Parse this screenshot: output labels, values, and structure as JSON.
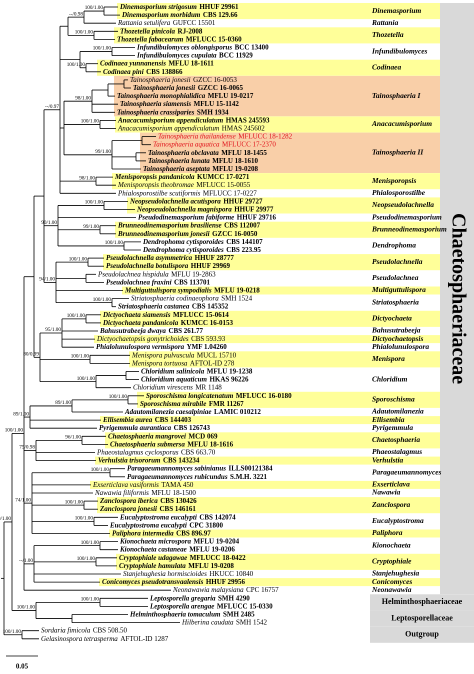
{
  "taxa": [
    {
      "name": "Dinemasporium strigosum",
      "strain": "HHUF 29961"
    },
    {
      "name": "Dinemasporium morbidum",
      "strain": "CBS 129.66"
    },
    {
      "name": "Rattania setulifera",
      "strain": "GUFCC 15501",
      "bold": false
    },
    {
      "name": "Thozetella pinicola",
      "strain": "RJ-2008"
    },
    {
      "name": "Thozetella fabacearum",
      "strain": "MFLUCC 15-0360"
    },
    {
      "name": "Infundibulomyces oblongisporus",
      "strain": "BCC 13400"
    },
    {
      "name": "Infundibulomyces cupulata",
      "strain": "BCC 11929"
    },
    {
      "name": "Codinaea yunnanensis",
      "strain": "MFLU 18-1611"
    },
    {
      "name": "Codinaea pini",
      "strain": "CBS 138866"
    },
    {
      "name": "Tainosphaeria jonesii",
      "strain": "GZCC 16-0053",
      "bold": false
    },
    {
      "name": "Tainosphaeria jonesii",
      "strain": "GZCC 16-0065"
    },
    {
      "name": "Tainosphaeria monophialidica",
      "strain": "MFLU 19-0217"
    },
    {
      "name": "Tainosphaeria siamensis",
      "strain": "MFLU 15-1142"
    },
    {
      "name": "Tainosphaeria crassiparies",
      "strain": "SMH 1934"
    },
    {
      "name": "Anacacumisporium appendiculatum",
      "strain": "HMAS 245593"
    },
    {
      "name": "Anacacumisporium appendiculatum",
      "strain": "HMAS 245602",
      "bold": false
    },
    {
      "name": "Tainosphaeria thailandense",
      "strain": "MFLUCC 18-1282",
      "color": "#e0101a",
      "bold": false
    },
    {
      "name": "Tainosphaeria aquatica",
      "strain": "MFLUCC 17-2370",
      "color": "#e0101a",
      "bold": false
    },
    {
      "name": "Tainosphaeria obclavata",
      "strain": "MFLU 18-1455"
    },
    {
      "name": "Tainosphaeria lunata",
      "strain": "MFLU 18-1610"
    },
    {
      "name": "Tainosphaeria aseptata",
      "strain": "MFLU 19-0208"
    },
    {
      "name": "Menisporopsis pandanicola",
      "strain": "KUMCC 17-0271"
    },
    {
      "name": "Menisporopsis theobromae",
      "strain": "MFLUCC 15-0055",
      "bold": false
    },
    {
      "name": "Phialosporostilbe scutiformis",
      "strain": "MFLUCC 17-0227",
      "bold": false
    },
    {
      "name": "Neopseudolachnella acutispora",
      "strain": "HHUF 29727"
    },
    {
      "name": "Neopseudolachnella magnispora",
      "strain": "HHUF 29977"
    },
    {
      "name": "Pseudodinemasporium fabiforme",
      "strain": "HHUF 29716"
    },
    {
      "name": "Brunneodinemasporium brasiliense",
      "strain": "CBS 112007"
    },
    {
      "name": "Brunneodinemasporium jonesii",
      "strain": "GZCC 16-0050"
    },
    {
      "name": "Dendrophoma cytisporoides",
      "strain": "CBS 144107"
    },
    {
      "name": "Dendrophoma cytisporoides",
      "strain": "CBS 223.95"
    },
    {
      "name": "Pseudolachnella asymmetrica",
      "strain": "HHUF 28777"
    },
    {
      "name": "Pseudolachnella botulispora",
      "strain": "HHUF 29969"
    },
    {
      "name": "Pseudolachnea hispidula",
      "strain": "MFLU 19-2863",
      "bold": false
    },
    {
      "name": "Pseudolachnea fraxini",
      "strain": "CBS 113701"
    },
    {
      "name": "Multiguttulispora sympodialis",
      "strain": "MFLU 19-0218"
    },
    {
      "name": "Striatosphaeria codinaeophora",
      "strain": "SMH 1524",
      "bold": false
    },
    {
      "name": "Striatosphaeria castanea",
      "strain": "CBS 145352"
    },
    {
      "name": "Dictyochaeta siamensis",
      "strain": "MFLUCC 15-0614"
    },
    {
      "name": "Dictyochaeta pandanicola",
      "strain": "KUMCC 16-0153"
    },
    {
      "name": "Bahusutrabeeja dwaya",
      "strain": "CBS 261.77"
    },
    {
      "name": "Dictyochaetopsis gonytrichoides",
      "strain": "CBS 593.93",
      "bold": false
    },
    {
      "name": "Phialolunulospora vermispora",
      "strain": "YMF 1.04260"
    },
    {
      "name": "Menispora pulvuscula",
      "strain": "MUCL 15710",
      "bold": false
    },
    {
      "name": "Menispora tortuosa",
      "strain": "AFTOL-ID 278",
      "bold": false
    },
    {
      "name": "Chloridium salinicola",
      "strain": "MFLU 19-1238"
    },
    {
      "name": "Chloridium aquaticum",
      "strain": "HKAS 96226"
    },
    {
      "name": "Chloridium virescens",
      "strain": "MR 1148",
      "bold": false
    },
    {
      "name": "Sporoschisma longicatenatum",
      "strain": "MFLUCC 16-0180"
    },
    {
      "name": "Sporoschisma mirabile",
      "strain": "FMR 11267"
    },
    {
      "name": "Adautomilanezia caesalpiniae",
      "strain": "LAMIC 010212"
    },
    {
      "name": "Ellisembia aurea",
      "strain": "CBS 144403"
    },
    {
      "name": "Pyrigemmula aurantiaca",
      "strain": "CBS 126743"
    },
    {
      "name": "Chaetosphaeria mangrovei",
      "strain": "MCD 069"
    },
    {
      "name": "Chaetosphaeria submersa",
      "strain": "MFLU 18-1616"
    },
    {
      "name": "Phaeostalagmus cyclosporus",
      "strain": "CBS 663.70",
      "bold": false
    },
    {
      "name": "Verhulstia trisororum",
      "strain": "CBS 143234"
    },
    {
      "name": "Paragaeumannomyces sabinianus",
      "strain": "ILLS00121384"
    },
    {
      "name": "Paragaeumannomyces rubicundus",
      "strain": "S.M.H. 3221"
    },
    {
      "name": "Exserticlava vasiformis",
      "strain": "TAMA 450",
      "bold": false
    },
    {
      "name": "Nawawia filiformis",
      "strain": "MFLU 18-1500",
      "bold": false
    },
    {
      "name": "Zanclospora iberica",
      "strain": "CBS 130426"
    },
    {
      "name": "Zanclospora jonesii",
      "strain": "CBS 146161"
    },
    {
      "name": "Eucalyptostroma eucalypti",
      "strain": "CBS 142074"
    },
    {
      "name": "Eucalyptostroma eucalypti",
      "strain": "CPC 31800"
    },
    {
      "name": "Paliphora intermedia",
      "strain": "CBS 896.97"
    },
    {
      "name": "Kionochaeta microspora",
      "strain": "MFLU 19-0204"
    },
    {
      "name": "Kionochaeta castaneae",
      "strain": "MFLU 19-0206"
    },
    {
      "name": "Cryptophiale udagawae",
      "strain": "MFLUCC 18-0422"
    },
    {
      "name": "Cryptophiale hamulata",
      "strain": "MFLU 19-0208"
    },
    {
      "name": "Stanjehughesia hormiscioides",
      "strain": "HKUCC 10840",
      "bold": false
    },
    {
      "name": "Conicomyces pseudotransvaalensis",
      "strain": "HHUF 29956"
    },
    {
      "name": "Neonawawia malaysiana",
      "strain": "CPC 16757",
      "bold": false
    },
    {
      "name": "Leptosporella gregaria",
      "strain": "SMH 4290"
    },
    {
      "name": "Leptosporella arengae",
      "strain": "MFLUCC 15-0330"
    },
    {
      "name": "Helminthosphaeria tomaculum",
      "strain": "SMH 2485"
    },
    {
      "name": "Hilberina caudata",
      "strain": "SMH 1542",
      "bold": false
    },
    {
      "name": "Sordaria fimicola",
      "strain": "CBS 508.50",
      "bold": false
    },
    {
      "name": "Gelasinospora tetrasperma",
      "strain": "AFTOL-ID 1287",
      "bold": false
    }
  ],
  "clades": [
    "Dinemasporium",
    "Rattania",
    "Thozetella",
    "Infundibulomyces",
    "Codinaea",
    "Tainosphaeria I",
    "Anacacumisporium",
    "Tainosphaeria II",
    "Menisporopsis",
    "Phialosporostilbe",
    "Neopseudolachnella",
    "Pseudodinemasporium",
    "Brunneodinemasporium",
    "Dendrophoma",
    "Pseudolachnella",
    "Pseudolachnea",
    "Multiguttulispora",
    "Striatosphaeria",
    "Dictyochaeta",
    "Bahusutrabeeja",
    "Dictyochaetopsis",
    "Phialolunulospora",
    "Menispora",
    "Chloridium",
    "Sporoschisma",
    "Adautomilanezia",
    "Ellisembia",
    "Pyrigemmula",
    "Chaetosphaeria",
    "Phaeostalagmus",
    "Verhulstia",
    "Paragaeumannomyces",
    "Exserticlava",
    "Nawawia",
    "Zanclospora",
    "Eucalyptostroma",
    "Paliphora",
    "Kionochaeta",
    "Cryptophiale",
    "Stanjehughesia",
    "Conicomyces",
    "Neonawawia"
  ],
  "groups": [
    "Helminthosphaeriaceae",
    "Leptosporellaceae",
    "Outgroup"
  ],
  "family_label": "Chaetosphaeriaceae",
  "support": [
    "100/1.00",
    "--/0.98",
    "100/1.00",
    "100/1.00",
    "100/1.00",
    "98/1.00",
    "100/1.00",
    "99/1.00",
    "--/0.97",
    "98/1.00",
    "100/1.00",
    "99/1.00",
    "100/1.00",
    "90/1.00",
    "100/1.00",
    "94/1.00",
    "100/1.00",
    "100/1.00",
    "95/1.00",
    "80/0.99",
    "100/1.00",
    "100/1.00",
    "89/1.00",
    "100/1.00",
    "89/1.00",
    "96/1.00",
    "75/0.98",
    "100/1.00",
    "74/1.00",
    "100/1.00",
    "100/1.00",
    "100/1.00",
    "100/1.00",
    "--/1.00",
    "100/1.00",
    "100/1.00",
    "100/1.00",
    "100/1.00",
    "100/1.00"
  ],
  "scale_bar": 0.05
}
